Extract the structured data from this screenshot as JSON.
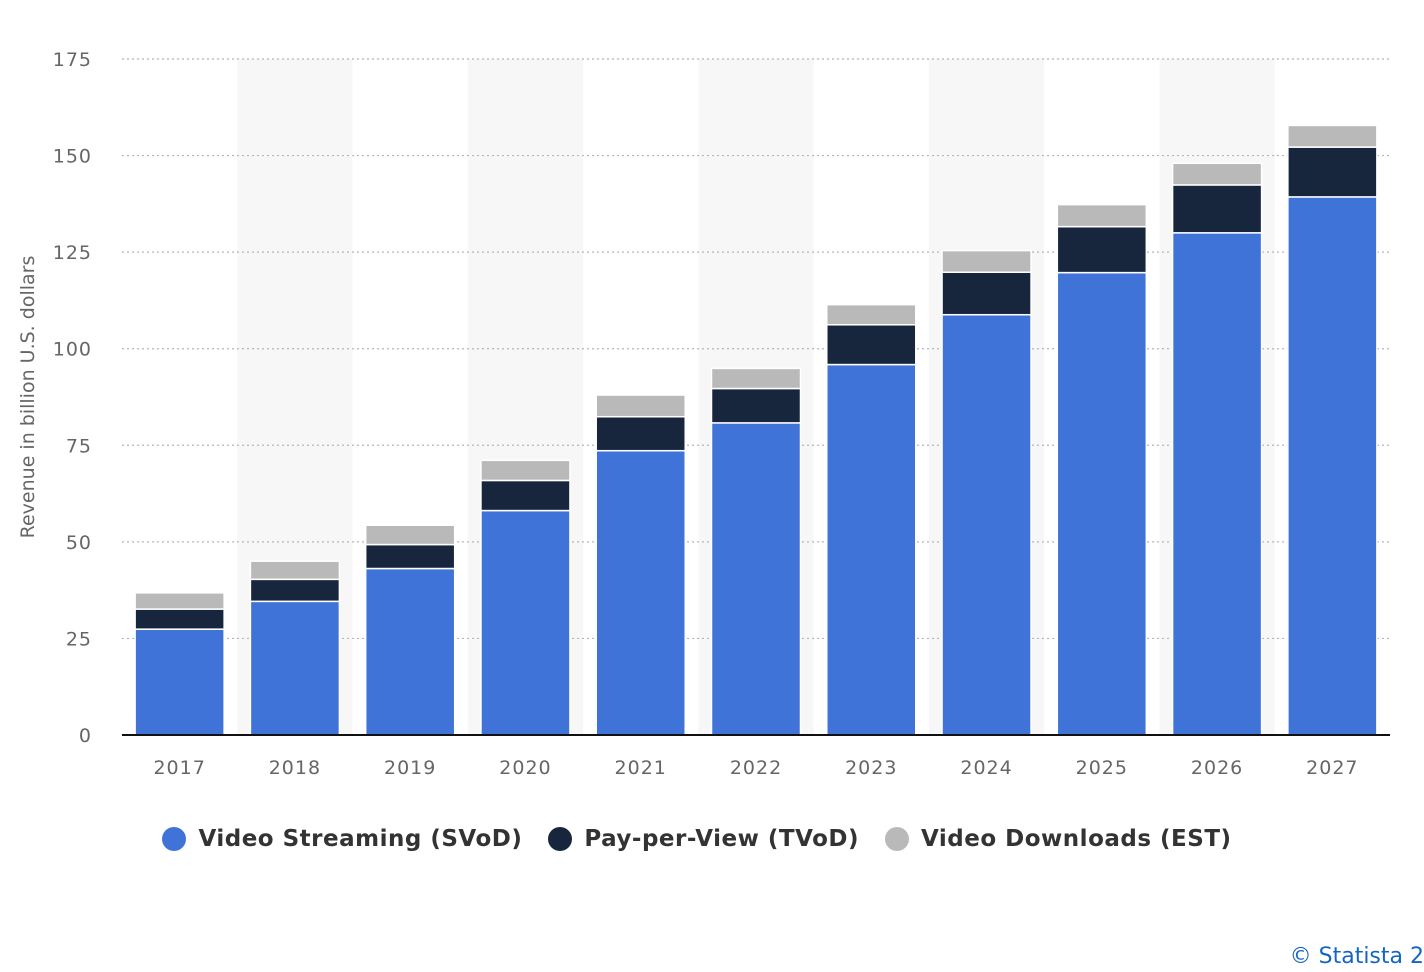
{
  "chart_data": {
    "type": "bar",
    "stacked": true,
    "categories": [
      "2017",
      "2018",
      "2019",
      "2020",
      "2021",
      "2022",
      "2023",
      "2024",
      "2025",
      "2026",
      "2027"
    ],
    "series": [
      {
        "name": "Video Streaming (SVoD)",
        "color": "#4073d8",
        "values": [
          27.4,
          34.6,
          43.1,
          58.1,
          73.6,
          80.8,
          95.9,
          108.8,
          119.7,
          130.0,
          139.3
        ]
      },
      {
        "name": "Pay-per-View (TVoD)",
        "color": "#17263d",
        "values": [
          5.2,
          5.7,
          6.2,
          7.8,
          8.8,
          8.9,
          10.3,
          11.0,
          11.9,
          12.4,
          12.9
        ]
      },
      {
        "name": "Video Downloads (EST)",
        "color": "#b9b9b9",
        "values": [
          4.2,
          4.7,
          5.0,
          5.2,
          5.6,
          5.2,
          5.2,
          5.6,
          5.7,
          5.6,
          5.6
        ]
      }
    ],
    "ylabel": "Revenue in billion U.S. dollars",
    "xlabel": "",
    "ylim": [
      0,
      175
    ],
    "yticks": [
      0,
      25,
      50,
      75,
      100,
      125,
      150,
      175
    ],
    "grid": "horizontal-dotted",
    "legend_position": "bottom-center"
  },
  "credit": "© Statista 2"
}
